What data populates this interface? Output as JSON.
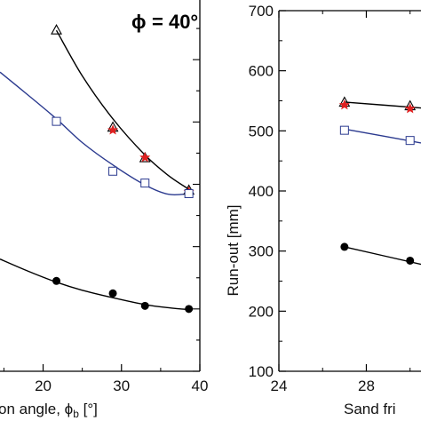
{
  "chart_data": [
    {
      "type": "scatter",
      "title_symbol": "ϕ",
      "title_value": "= 40°",
      "xlabel": "on angle, ϕ",
      "xlabel_sub": "b",
      "xlabel_unit": " [°]",
      "xticks": [
        "20",
        "30",
        "40"
      ],
      "xlim": [
        14.5,
        40
      ],
      "ylim": [
        100,
        700
      ],
      "series": [
        {
          "marker": "triangle-open",
          "x": [
            21.7,
            28.9,
            33.0,
            38.6
          ],
          "y": [
            647,
            491,
            442,
            390
          ],
          "fit": [
            [
              21.7,
              647
            ],
            [
              25,
              574
            ],
            [
              28.9,
              505
            ],
            [
              33,
              447
            ],
            [
              36,
              414
            ],
            [
              38.6,
              392
            ]
          ]
        },
        {
          "marker": "star-red",
          "x": [
            28.9,
            33.0,
            38.6
          ],
          "y": [
            487,
            443,
            388
          ]
        },
        {
          "marker": "square-open",
          "x": [
            21.7,
            28.9,
            33.0,
            38.6
          ],
          "y": [
            501,
            421,
            402,
            385
          ],
          "fit": [
            [
              14.5,
              580
            ],
            [
              18,
              544
            ],
            [
              21.7,
              505
            ],
            [
              25,
              467
            ],
            [
              28.9,
              431
            ],
            [
              33,
              399
            ],
            [
              36,
              384
            ],
            [
              38.6,
              385
            ]
          ]
        },
        {
          "marker": "circle-filled",
          "x": [
            21.7,
            28.9,
            33.0,
            38.6
          ],
          "y": [
            245,
            225,
            205,
            200
          ],
          "fit": [
            [
              14.5,
              280
            ],
            [
              18,
              261
            ],
            [
              21.7,
              243
            ],
            [
              25,
              230
            ],
            [
              28.9,
              218
            ],
            [
              33,
              207
            ],
            [
              36,
              202
            ],
            [
              38.6,
              199
            ]
          ]
        }
      ]
    },
    {
      "type": "scatter",
      "xlabel": "Sand fri",
      "ylabel": "Run-out [mm]",
      "xticks": [
        "24",
        "28"
      ],
      "yticks": [
        "100",
        "200",
        "300",
        "400",
        "500",
        "600",
        "700"
      ],
      "xlim": [
        24,
        30.5
      ],
      "ylim": [
        100,
        700
      ],
      "series": [
        {
          "marker": "triangle-open",
          "x": [
            27,
            30
          ],
          "y": [
            547,
            541
          ],
          "fit": [
            [
              27,
              548
            ],
            [
              30.5,
              538
            ]
          ]
        },
        {
          "marker": "star-red",
          "x": [
            27,
            30
          ],
          "y": [
            543,
            537
          ]
        },
        {
          "marker": "square-open",
          "x": [
            27,
            30
          ],
          "y": [
            501,
            484
          ],
          "fit": [
            [
              27,
              503
            ],
            [
              30.5,
              480
            ]
          ]
        },
        {
          "marker": "circle-filled",
          "x": [
            27,
            30
          ],
          "y": [
            307,
            284
          ],
          "fit": [
            [
              27,
              307
            ],
            [
              30.5,
              278
            ]
          ]
        }
      ]
    }
  ],
  "colors": {
    "axis": "#000000",
    "fit_black": "#000000",
    "fit_blue": "#2b3a8f",
    "square": "#2b3a8f",
    "star": "#e02020"
  }
}
